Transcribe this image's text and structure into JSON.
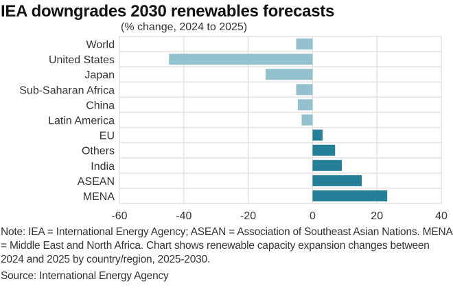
{
  "chart_data": {
    "type": "bar",
    "orientation": "horizontal",
    "title": "IEA downgrades 2030 renewables forecasts",
    "subtitle": "(% change, 2024 to 2025)",
    "xlabel": "",
    "ylabel": "",
    "categories": [
      "World",
      "United States",
      "Japan",
      "Sub-Saharan Africa",
      "China",
      "Latin America",
      "EU",
      "Others",
      "India",
      "ASEAN",
      "MENA"
    ],
    "values": [
      -5.1,
      -44.6,
      -14.6,
      -5.1,
      -4.6,
      -3.4,
      3.1,
      7.0,
      9.1,
      15.3,
      23.2
    ],
    "xlim": [
      -60,
      40
    ],
    "xticks": [
      -60,
      -40,
      -20,
      0,
      20,
      40
    ],
    "xtick_labels": [
      "-60",
      "-40",
      "-20",
      "0",
      "20",
      "40"
    ],
    "grid": true,
    "legend": "none",
    "colors": {
      "negative": "#93C1CE",
      "positive": "#257F97",
      "grid": "#E3E3E3"
    }
  },
  "note": "Note: IEA = International Energy Agency; ASEAN = Association of Southeast Asian Nations. MENA = Middle East and North Africa. Chart shows renewable capacity expansion changes between 2024 and 2025 by country/region, 2025-2030.",
  "source": "Source: International Energy Agency"
}
